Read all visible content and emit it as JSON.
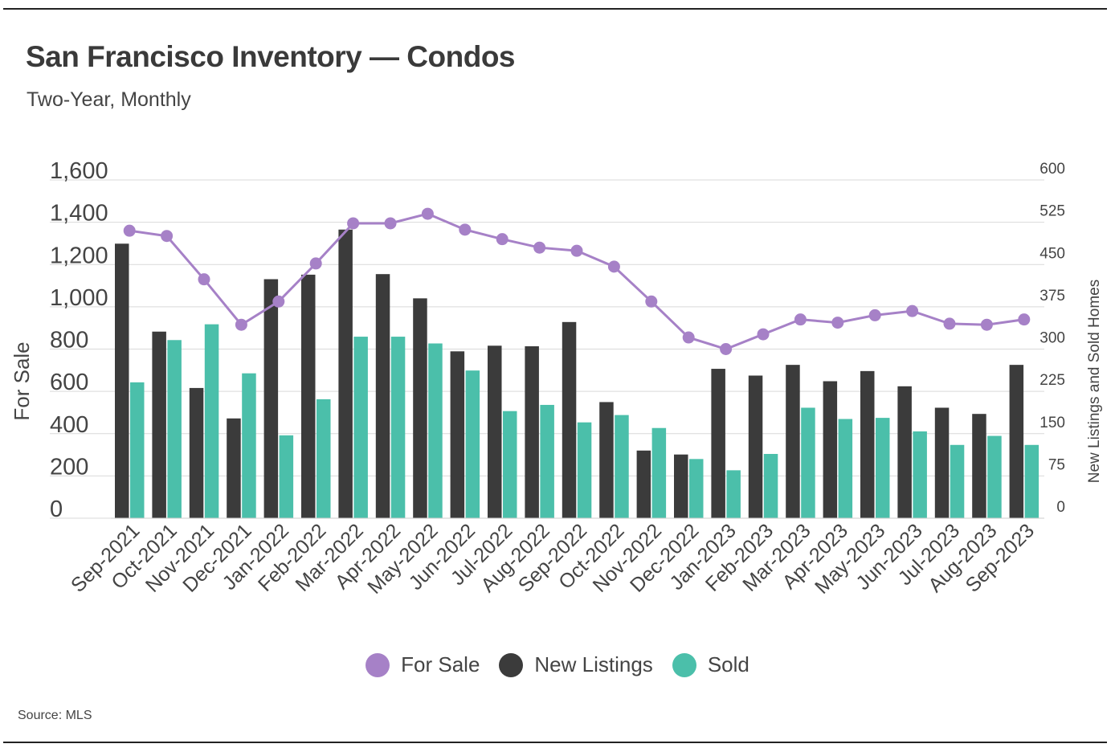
{
  "title": "San Francisco Inventory — Condos",
  "subtitle": "Two-Year, Monthly",
  "source": "Source: MLS",
  "colors": {
    "for_sale": "#a681c7",
    "new_listings": "#3b3b3b",
    "sold": "#4bbfaa",
    "grid": "#d9d9d9"
  },
  "chart_data": {
    "type": "bar",
    "title": "San Francisco Inventory — Condos",
    "subtitle": "Two-Year, Monthly",
    "ylabel": "For Sale",
    "y2label": "New Listings and Sold Homes",
    "ylim": [
      0,
      1600
    ],
    "y2lim": [
      0,
      600
    ],
    "yticks": [
      "0",
      "200",
      "400",
      "600",
      "800",
      "1,000",
      "1,200",
      "1,400",
      "1,600"
    ],
    "y2ticks": [
      "0",
      "75",
      "150",
      "225",
      "300",
      "375",
      "450",
      "525",
      "600"
    ],
    "categories": [
      "Sep-2021",
      "Oct-2021",
      "Nov-2021",
      "Dec-2021",
      "Jan-2022",
      "Feb-2022",
      "Mar-2022",
      "Apr-2022",
      "May-2022",
      "Jun-2022",
      "Jul-2022",
      "Aug-2022",
      "Sep-2022",
      "Oct-2022",
      "Nov-2022",
      "Dec-2022",
      "Jan-2023",
      "Feb-2023",
      "Mar-2023",
      "Apr-2023",
      "May-2023",
      "Jun-2023",
      "Jul-2023",
      "Aug-2023",
      "Sep-2023"
    ],
    "series": [
      {
        "name": "For Sale",
        "type": "line",
        "axis": "left",
        "values": [
          1360,
          1335,
          1130,
          915,
          1025,
          1205,
          1395,
          1395,
          1440,
          1365,
          1320,
          1280,
          1265,
          1190,
          1025,
          855,
          800,
          870,
          940,
          925,
          960,
          980,
          920,
          915,
          940
        ]
      },
      {
        "name": "New Listings",
        "type": "bar",
        "axis": "right",
        "values": [
          487,
          331,
          231,
          177,
          424,
          432,
          512,
          433,
          390,
          296,
          306,
          305,
          348,
          206,
          120,
          113,
          265,
          253,
          272,
          243,
          261,
          234,
          196,
          185,
          272
        ]
      },
      {
        "name": "Sold",
        "type": "bar",
        "axis": "right",
        "values": [
          241,
          316,
          344,
          257,
          147,
          211,
          322,
          322,
          310,
          262,
          190,
          201,
          170,
          183,
          160,
          105,
          85,
          114,
          196,
          176,
          178,
          154,
          130,
          146,
          130
        ]
      }
    ],
    "legend": [
      "For Sale",
      "New Listings",
      "Sold"
    ],
    "grid": true,
    "legend_position": "bottom"
  }
}
